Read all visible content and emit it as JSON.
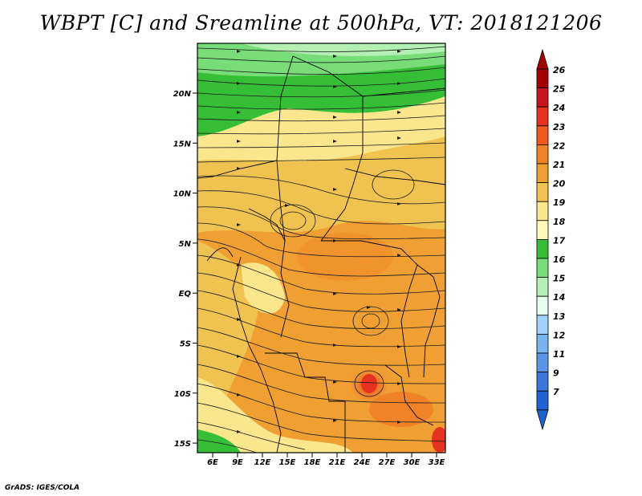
{
  "title": "WBPT [C] and Sreamline at 500hPa, VT: 2018121206",
  "credit": "GrADS: IGES/COLA",
  "map": {
    "lat_labels": [
      "20N",
      "15N",
      "10N",
      "5N",
      "EQ",
      "5S",
      "10S",
      "15S"
    ],
    "lon_labels": [
      "6E",
      "9E",
      "12E",
      "15E",
      "18E",
      "21E",
      "24E",
      "27E",
      "30E",
      "33E"
    ]
  },
  "colorbar": {
    "levels": [
      "26",
      "25",
      "24",
      "23",
      "22",
      "21",
      "20",
      "19",
      "18",
      "17",
      "16",
      "15",
      "14",
      "13",
      "12",
      "11",
      "9",
      "7"
    ],
    "colors": [
      "#a50000",
      "#c8141e",
      "#e6321e",
      "#f05a1e",
      "#f08228",
      "#f0a032",
      "#f0c350",
      "#fae68c",
      "#fffab4",
      "#37be37",
      "#78dc78",
      "#b4f0b4",
      "#e6fff0",
      "#a0d2fa",
      "#78b4f0",
      "#5a96e6",
      "#3c78dc",
      "#1e64d2"
    ]
  }
}
